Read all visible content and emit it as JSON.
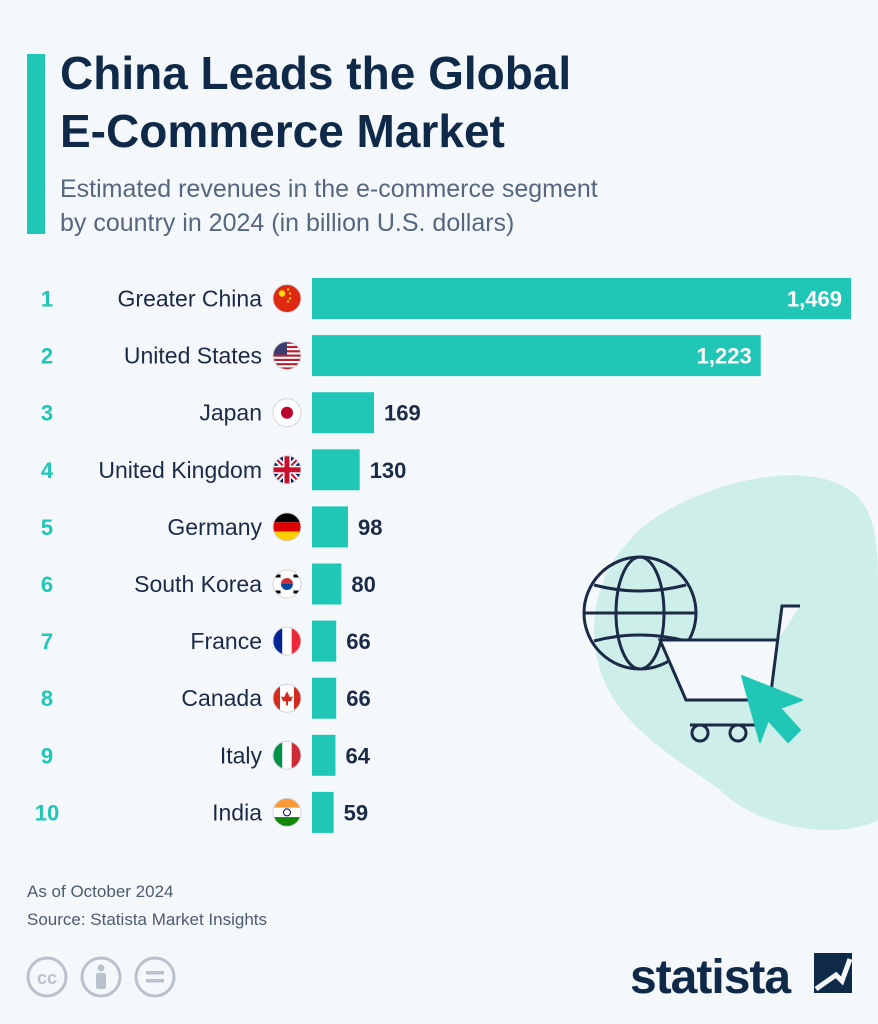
{
  "header": {
    "title_line1": "China Leads the Global",
    "title_line2": "E-Commerce Market",
    "subtitle_line1": "Estimated revenues in the e-commerce segment",
    "subtitle_line2": "by country in 2024 (in billion U.S. dollars)"
  },
  "colors": {
    "accent": "#20c6b6",
    "title": "#0f2a49",
    "text": "#1a2a47",
    "value_inside": "#ffffff",
    "blob": "#cdeee9"
  },
  "chart_data": {
    "type": "bar",
    "orientation": "horizontal",
    "ranks": [
      "1",
      "2",
      "3",
      "4",
      "5",
      "6",
      "7",
      "8",
      "9",
      "10"
    ],
    "categories": [
      "Greater China",
      "United States",
      "Japan",
      "United Kingdom",
      "Germany",
      "South Korea",
      "France",
      "Canada",
      "Italy",
      "India"
    ],
    "values": [
      1469,
      1223,
      169,
      130,
      98,
      80,
      66,
      66,
      64,
      59
    ],
    "value_labels": [
      "1,469",
      "1,223",
      "169",
      "130",
      "98",
      "80",
      "66",
      "66",
      "64",
      "59"
    ],
    "flags": [
      "china-flag-icon",
      "usa-flag-icon",
      "japan-flag-icon",
      "uk-flag-icon",
      "germany-flag-icon",
      "south-korea-flag-icon",
      "france-flag-icon",
      "canada-flag-icon",
      "italy-flag-icon",
      "india-flag-icon"
    ],
    "xlim": [
      0,
      1469
    ],
    "grid": false,
    "legend": "none"
  },
  "illustration": {
    "icon": "globe-shopping-cart-cursor-icon"
  },
  "footer": {
    "as_of": "As of October 2024",
    "source": "Source: Statista Market Insights",
    "license_icons": [
      "cc-icon",
      "by-icon",
      "nd-icon"
    ],
    "brand": "statista"
  }
}
